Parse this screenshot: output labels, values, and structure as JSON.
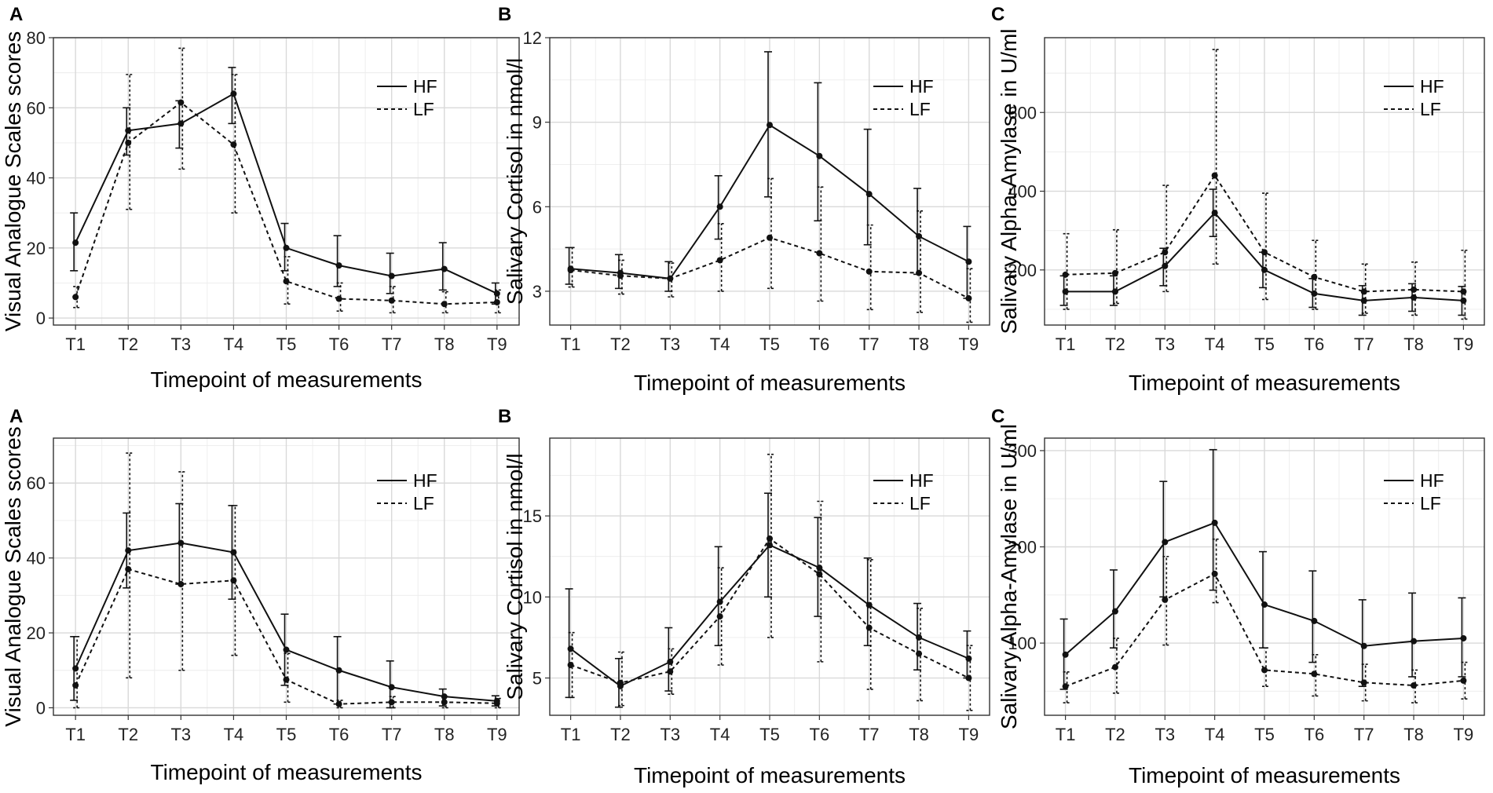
{
  "chart_data": [
    {
      "type": "line",
      "panel": "A",
      "xlabel": "Timepoint of measurements",
      "ylabel": "Visual Analogue Scales scores",
      "categories": [
        "T1",
        "T2",
        "T3",
        "T4",
        "T5",
        "T6",
        "T7",
        "T8",
        "T9"
      ],
      "ylim": [
        -2,
        80
      ],
      "yticks": [
        0,
        20,
        40,
        60,
        80
      ],
      "legend": "top-right",
      "series": [
        {
          "name": "HF",
          "values": [
            21.5,
            53.5,
            55.5,
            64,
            20,
            15,
            12,
            14,
            7
          ],
          "err_lo": [
            13.5,
            46.5,
            48.5,
            55.5,
            13.5,
            9,
            7,
            8,
            4
          ],
          "err_hi": [
            30,
            60,
            62,
            71.5,
            27,
            23.5,
            18.5,
            21.5,
            10
          ]
        },
        {
          "name": "LF",
          "values": [
            6,
            50,
            61.5,
            49.5,
            10.5,
            5.5,
            5,
            4,
            4.5
          ],
          "err_lo": [
            3,
            31,
            42.5,
            30,
            4,
            2,
            1.5,
            1.5,
            1.5
          ],
          "err_hi": [
            9,
            69.5,
            77,
            69.5,
            17.5,
            10,
            9,
            7.5,
            8
          ]
        }
      ]
    },
    {
      "type": "line",
      "panel": "B",
      "xlabel": "Timepoint of measurements",
      "ylabel": "Salivary Cortisol in nmol/l",
      "categories": [
        "T1",
        "T2",
        "T3",
        "T4",
        "T5",
        "T6",
        "T7",
        "T8",
        "T9"
      ],
      "ylim": [
        1.8,
        12
      ],
      "yticks": [
        3,
        6,
        9,
        12
      ],
      "legend": "top-right",
      "series": [
        {
          "name": "HF",
          "values": [
            3.8,
            3.65,
            3.45,
            6,
            8.9,
            7.8,
            6.45,
            4.95,
            4.05
          ],
          "err_lo": [
            3.25,
            3.1,
            3.0,
            4.85,
            6.35,
            5.5,
            4.65,
            3.6,
            2.75
          ],
          "err_hi": [
            4.55,
            4.3,
            4.05,
            7.1,
            11.5,
            10.4,
            8.75,
            6.65,
            5.3
          ]
        },
        {
          "name": "LF",
          "values": [
            3.75,
            3.55,
            3.45,
            4.1,
            4.9,
            4.35,
            3.7,
            3.65,
            2.75
          ],
          "err_lo": [
            3.15,
            2.9,
            2.8,
            3.0,
            3.1,
            2.65,
            2.35,
            2.25,
            1.9
          ],
          "err_hi": [
            4.55,
            4.1,
            4.0,
            5.4,
            7.0,
            6.7,
            5.35,
            5.85,
            3.8
          ]
        }
      ]
    },
    {
      "type": "line",
      "panel": "C",
      "xlabel": "Timepoint of measurements",
      "ylabel": "Salivary Alpha-Amylase in U/ml",
      "categories": [
        "T1",
        "T2",
        "T3",
        "T4",
        "T5",
        "T6",
        "T7",
        "T8",
        "T9"
      ],
      "ylim": [
        60,
        790
      ],
      "yticks": [
        200,
        400,
        600
      ],
      "legend": "top-right",
      "series": [
        {
          "name": "HF",
          "values": [
            145,
            145,
            210,
            345,
            200,
            140,
            122,
            130,
            122
          ],
          "err_lo": [
            110,
            110,
            160,
            285,
            155,
            105,
            85,
            95,
            85
          ],
          "err_hi": [
            185,
            185,
            255,
            405,
            245,
            178,
            160,
            165,
            158
          ]
        },
        {
          "name": "LF",
          "values": [
            188,
            192,
            245,
            440,
            245,
            182,
            145,
            150,
            145
          ],
          "err_lo": [
            100,
            115,
            145,
            215,
            125,
            100,
            90,
            85,
            75
          ],
          "err_hi": [
            292,
            302,
            415,
            760,
            395,
            275,
            215,
            220,
            250
          ]
        }
      ]
    },
    {
      "type": "line",
      "panel": "A",
      "xlabel": "Timepoint of measurements",
      "ylabel": "Visual Analogue Scales scores",
      "categories": [
        "T1",
        "T2",
        "T3",
        "T4",
        "T5",
        "T6",
        "T7",
        "T8",
        "T9"
      ],
      "ylim": [
        -2,
        72
      ],
      "yticks": [
        0,
        20,
        40,
        60
      ],
      "legend": "top-right",
      "series": [
        {
          "name": "HF",
          "values": [
            10.5,
            42,
            44,
            41.5,
            15.5,
            10,
            5.5,
            3,
            1.8
          ],
          "err_lo": [
            2,
            32,
            33,
            29,
            6,
            1,
            0,
            0.5,
            0.5
          ],
          "err_hi": [
            19,
            52,
            54.5,
            54,
            25,
            19,
            12.5,
            5,
            3.2
          ]
        },
        {
          "name": "LF",
          "values": [
            6,
            37,
            33,
            34,
            7.5,
            1,
            1.5,
            1.5,
            1.2
          ],
          "err_lo": [
            0,
            8,
            10,
            14,
            1.5,
            0,
            0,
            0,
            0
          ],
          "err_hi": [
            19,
            68,
            63,
            54,
            14.5,
            2,
            3,
            3,
            2.5
          ]
        }
      ]
    },
    {
      "type": "line",
      "panel": "B",
      "xlabel": "Timepoint of measurements",
      "ylabel": "Salivary Cortisol in nmol/l",
      "categories": [
        "T1",
        "T2",
        "T3",
        "T4",
        "T5",
        "T6",
        "T7",
        "T8",
        "T9"
      ],
      "ylim": [
        2.7,
        19.8
      ],
      "yticks": [
        5,
        10,
        15
      ],
      "legend": "top-right",
      "series": [
        {
          "name": "HF",
          "values": [
            6.8,
            4.5,
            6,
            9.7,
            13.2,
            11.8,
            9.5,
            7.5,
            6.2
          ],
          "err_lo": [
            3.8,
            3.2,
            4.2,
            7.0,
            10.0,
            8.8,
            7.0,
            5.5,
            5.0
          ],
          "err_hi": [
            10.5,
            6.2,
            8.1,
            13.1,
            16.4,
            14.9,
            12.4,
            9.6,
            7.9
          ]
        },
        {
          "name": "LF",
          "values": [
            5.8,
            4.7,
            5.4,
            8.8,
            13.6,
            11.4,
            8.1,
            6.5,
            5.0
          ],
          "err_lo": [
            3.8,
            3.3,
            4.0,
            5.8,
            7.5,
            6.0,
            4.3,
            3.6,
            3.0
          ],
          "err_hi": [
            7.8,
            6.6,
            6.8,
            11.8,
            18.8,
            15.9,
            12.3,
            9.3,
            7.0
          ]
        }
      ]
    },
    {
      "type": "line",
      "panel": "C",
      "xlabel": "Timepoint of measurements",
      "ylabel": "Salivary Alpha-Amylase in U/ml",
      "categories": [
        "T1",
        "T2",
        "T3",
        "T4",
        "T5",
        "T6",
        "T7",
        "T8",
        "T9"
      ],
      "ylim": [
        25,
        313
      ],
      "yticks": [
        100,
        200,
        300
      ],
      "legend": "top-right",
      "series": [
        {
          "name": "HF",
          "values": [
            88,
            133,
            205,
            225,
            140,
            123,
            97,
            102,
            105
          ],
          "err_lo": [
            52,
            95,
            148,
            155,
            95,
            80,
            55,
            65,
            65
          ],
          "err_hi": [
            125,
            176,
            268,
            301,
            195,
            175,
            145,
            152,
            147
          ]
        },
        {
          "name": "LF",
          "values": [
            55,
            75,
            145,
            172,
            72,
            68,
            59,
            56,
            61
          ],
          "err_lo": [
            38,
            48,
            98,
            142,
            55,
            45,
            40,
            38,
            42
          ],
          "err_hi": [
            70,
            105,
            190,
            208,
            95,
            88,
            78,
            72,
            80
          ]
        }
      ]
    }
  ]
}
